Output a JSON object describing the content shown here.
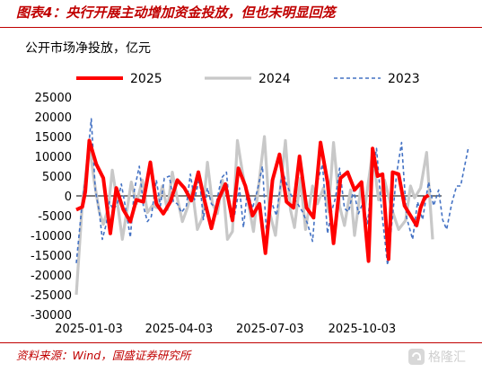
{
  "header": {
    "title": "图表4：央行开展主动增加资金投放，但也未明显回笼"
  },
  "footer": {
    "source": "资料来源：Wind，国盛证券研究所",
    "watermark": "格隆汇"
  },
  "colors": {
    "brand_red": "#c00000",
    "series_2025": "#ff0000",
    "series_2024": "#c8c8c8",
    "series_2023": "#4472c4"
  },
  "chart_data": {
    "type": "line",
    "subtitle": "公开市场净投放，亿元",
    "x_ticks": [
      "2025-01-03",
      "2025-04-03",
      "2025-07-03",
      "2025-10-03"
    ],
    "ylim": [
      -30000,
      25000
    ],
    "y_ticks": [
      25000,
      20000,
      15000,
      10000,
      5000,
      0,
      -5000,
      -10000,
      -15000,
      -20000,
      -25000,
      -30000
    ],
    "legend": "top",
    "series": [
      {
        "name": "2025",
        "style": "solid-thick",
        "points": [
          [
            0,
            -3500
          ],
          [
            6,
            -2800
          ],
          [
            9,
            1000
          ],
          [
            13,
            14000
          ],
          [
            20,
            8000
          ],
          [
            27,
            4500
          ],
          [
            34,
            -9500
          ],
          [
            40,
            2000
          ],
          [
            47,
            -3500
          ],
          [
            54,
            -6500
          ],
          [
            60,
            -1000
          ],
          [
            67,
            -1500
          ],
          [
            74,
            8500
          ],
          [
            80,
            -2000
          ],
          [
            87,
            -4500
          ],
          [
            94,
            -1500
          ],
          [
            101,
            4000
          ],
          [
            108,
            2000
          ],
          [
            115,
            -1200
          ],
          [
            122,
            6000
          ],
          [
            128,
            -1000
          ],
          [
            135,
            -8200
          ],
          [
            142,
            -1000
          ],
          [
            149,
            3000
          ],
          [
            156,
            -6200
          ],
          [
            162,
            7000
          ],
          [
            169,
            2500
          ],
          [
            176,
            -5000
          ],
          [
            183,
            -2000
          ],
          [
            189,
            -14500
          ],
          [
            196,
            4000
          ],
          [
            203,
            10500
          ],
          [
            210,
            -1500
          ],
          [
            217,
            -3000
          ],
          [
            223,
            10000
          ],
          [
            230,
            -3000
          ],
          [
            237,
            -5500
          ],
          [
            244,
            13500
          ],
          [
            251,
            3500
          ],
          [
            257,
            -12000
          ],
          [
            264,
            4500
          ],
          [
            271,
            6000
          ],
          [
            278,
            1500
          ],
          [
            285,
            3500
          ],
          [
            292,
            -16500
          ],
          [
            296,
            12000
          ],
          [
            301,
            5000
          ],
          [
            306,
            5500
          ],
          [
            312,
            -16000
          ],
          [
            316,
            6000
          ],
          [
            322,
            5500
          ],
          [
            328,
            -2500
          ],
          [
            334,
            -5000
          ],
          [
            340,
            -7500
          ],
          [
            344,
            -3000
          ],
          [
            348,
            -500
          ],
          [
            352,
            200
          ]
        ]
      },
      {
        "name": "2024",
        "style": "solid",
        "points": [
          [
            0,
            -25000
          ],
          [
            6,
            -2000
          ],
          [
            13,
            13000
          ],
          [
            18,
            3500
          ],
          [
            23,
            -4000
          ],
          [
            27,
            -7200
          ],
          [
            32,
            -3000
          ],
          [
            36,
            6500
          ],
          [
            41,
            -1500
          ],
          [
            46,
            -11000
          ],
          [
            51,
            -3000
          ],
          [
            55,
            3500
          ],
          [
            60,
            -2000
          ],
          [
            66,
            4000
          ],
          [
            71,
            -4200
          ],
          [
            76,
            -2500
          ],
          [
            81,
            -3000
          ],
          [
            86,
            2500
          ],
          [
            91,
            -3500
          ],
          [
            96,
            6000
          ],
          [
            100,
            500
          ],
          [
            106,
            -6500
          ],
          [
            111,
            -3000
          ],
          [
            116,
            1500
          ],
          [
            121,
            -8500
          ],
          [
            126,
            -5500
          ],
          [
            131,
            8500
          ],
          [
            136,
            -2000
          ],
          [
            141,
            -4500
          ],
          [
            146,
            4000
          ],
          [
            151,
            -11000
          ],
          [
            156,
            -9000
          ],
          [
            161,
            14000
          ],
          [
            166,
            6000
          ],
          [
            172,
            -2000
          ],
          [
            177,
            -9000
          ],
          [
            182,
            2000
          ],
          [
            188,
            15000
          ],
          [
            193,
            -4000
          ],
          [
            199,
            -10000
          ],
          [
            204,
            2000
          ],
          [
            209,
            14000
          ],
          [
            214,
            -3500
          ],
          [
            218,
            -8000
          ],
          [
            224,
            4500
          ],
          [
            229,
            -8500
          ],
          [
            236,
            2500
          ],
          [
            241,
            -2000
          ],
          [
            247,
            2000
          ],
          [
            252,
            -4000
          ],
          [
            257,
            13500
          ],
          [
            263,
            -2500
          ],
          [
            268,
            -7500
          ],
          [
            274,
            1500
          ],
          [
            278,
            -10000
          ],
          [
            285,
            3500
          ],
          [
            288,
            -3500
          ],
          [
            296,
            11000
          ],
          [
            302,
            -1000
          ],
          [
            308,
            4000
          ],
          [
            316,
            -4000
          ],
          [
            322,
            -8500
          ],
          [
            329,
            -6200
          ],
          [
            334,
            2500
          ],
          [
            338,
            -500
          ],
          [
            344,
            2000
          ],
          [
            350,
            11000
          ],
          [
            356,
            -11000
          ]
        ]
      },
      {
        "name": "2023",
        "style": "dashed",
        "points": [
          [
            0,
            -17000
          ],
          [
            5,
            -4000
          ],
          [
            10,
            6500
          ],
          [
            15,
            19500
          ],
          [
            19,
            1500
          ],
          [
            23,
            -4000
          ],
          [
            26,
            -11000
          ],
          [
            30,
            -7000
          ],
          [
            33,
            -1500
          ],
          [
            37,
            -3500
          ],
          [
            41,
            -2000
          ],
          [
            45,
            3000
          ],
          [
            50,
            -4200
          ],
          [
            54,
            -10500
          ],
          [
            58,
            1500
          ],
          [
            63,
            7500
          ],
          [
            67,
            -2500
          ],
          [
            71,
            -6500
          ],
          [
            75,
            -5200
          ],
          [
            80,
            4000
          ],
          [
            84,
            -2500
          ],
          [
            88,
            4500
          ],
          [
            93,
            5000
          ],
          [
            97,
            -1500
          ],
          [
            101,
            -2000
          ],
          [
            105,
            -4200
          ],
          [
            110,
            -2500
          ],
          [
            114,
            5500
          ],
          [
            118,
            -1000
          ],
          [
            123,
            4500
          ],
          [
            127,
            -6000
          ],
          [
            131,
            2000
          ],
          [
            135,
            -2000
          ],
          [
            139,
            -3000
          ],
          [
            145,
            4500
          ],
          [
            150,
            6000
          ],
          [
            154,
            -5200
          ],
          [
            158,
            -5000
          ],
          [
            163,
            2000
          ],
          [
            167,
            -8000
          ],
          [
            171,
            1500
          ],
          [
            176,
            -3200
          ],
          [
            181,
            1500
          ],
          [
            186,
            7500
          ],
          [
            190,
            -9500
          ],
          [
            195,
            -1500
          ],
          [
            200,
            -5000
          ],
          [
            206,
            6500
          ],
          [
            210,
            3000
          ],
          [
            215,
            0
          ],
          [
            220,
            -1500
          ],
          [
            226,
            -4000
          ],
          [
            231,
            -7000
          ],
          [
            236,
            -11500
          ],
          [
            241,
            3500
          ],
          [
            246,
            8000
          ],
          [
            251,
            -9500
          ],
          [
            255,
            -4000
          ],
          [
            259,
            -500
          ],
          [
            263,
            7000
          ],
          [
            268,
            -3200
          ],
          [
            272,
            -4000
          ],
          [
            277,
            1500
          ],
          [
            282,
            -4500
          ],
          [
            286,
            -2000
          ],
          [
            291,
            -7000
          ],
          [
            296,
            6000
          ],
          [
            300,
            12000
          ],
          [
            305,
            -3500
          ],
          [
            311,
            -17500
          ],
          [
            316,
            -5000
          ],
          [
            320,
            5500
          ],
          [
            325,
            13500
          ],
          [
            330,
            -5500
          ],
          [
            336,
            -11000
          ],
          [
            341,
            -1500
          ],
          [
            346,
            -6000
          ],
          [
            352,
            3500
          ],
          [
            357,
            -2500
          ],
          [
            362,
            1500
          ],
          [
            366,
            -6000
          ],
          [
            370,
            -8500
          ],
          [
            375,
            -2000
          ],
          [
            380,
            2500
          ],
          [
            384,
            2500
          ],
          [
            388,
            7500
          ],
          [
            392,
            12500
          ]
        ]
      }
    ]
  }
}
